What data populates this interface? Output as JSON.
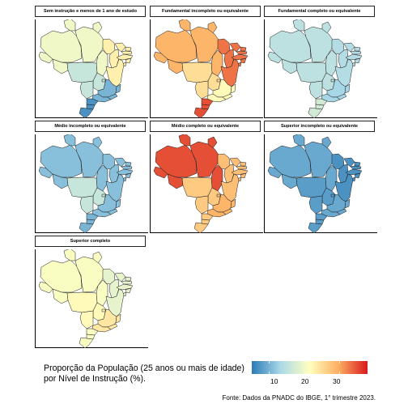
{
  "legend": {
    "title_line1": "Proporção da População (25 anos ou mais de idade)",
    "title_line2": "por Nível de Instrução (%).",
    "ticks": [
      "10",
      "20",
      "30"
    ],
    "tick_values": [
      10,
      20,
      30
    ],
    "range": [
      5,
      38
    ],
    "palette": [
      "#2c7bb6",
      "#abd9e9",
      "#ffffbf",
      "#fdae61",
      "#d7191c"
    ]
  },
  "caption": "Fonte: Dados da PNADC do IBGE, 1° trimestre 2023.",
  "panels": [
    {
      "title": "Sem instrução e menos de 1 ano de estudo",
      "values": {
        "north": 20,
        "nordeste": 23,
        "centro_oeste": 16,
        "sudeste": 10,
        "sul": 7
      }
    },
    {
      "title": "Fundamental incompleto ou equivalente",
      "values": {
        "north": 29,
        "nordeste": 33,
        "centro_oeste": 25,
        "sudeste": 22,
        "sul": 35
      }
    },
    {
      "title": "Fundamental completo ou equivalente",
      "values": {
        "north": 15,
        "nordeste": 14,
        "centro_oeste": 15,
        "sudeste": 13,
        "sul": 17
      }
    },
    {
      "title": "Médio incompleto ou equivalente",
      "values": {
        "north": 11,
        "nordeste": 11,
        "centro_oeste": 16,
        "sudeste": 11,
        "sul": 10
      }
    },
    {
      "title": "Médio completo ou equivalente",
      "values": {
        "north": 35,
        "nordeste": 28,
        "centro_oeste": 27,
        "sudeste": 29,
        "sul": 27
      }
    },
    {
      "title": "Superior incompleto ou equivalente",
      "values": {
        "north": 9,
        "nordeste": 7,
        "centro_oeste": 8,
        "sudeste": 9,
        "sul": 8
      }
    },
    {
      "title": "Superior completo",
      "values": {
        "north": 21,
        "nordeste": 19,
        "centro_oeste": 22,
        "sudeste": 24,
        "sul": 21
      }
    }
  ]
}
